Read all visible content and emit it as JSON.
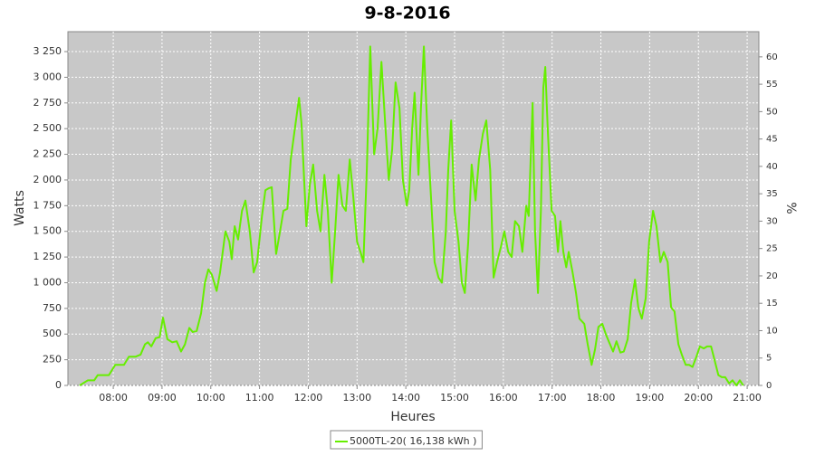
{
  "chart_data": {
    "type": "line",
    "title": "9-8-2016",
    "x_label": "Heures",
    "y_label": "Watts",
    "y2_label": "%",
    "x": [
      7.31,
      7.48,
      7.61,
      7.68,
      7.81,
      7.91,
      8.04,
      8.15,
      8.22,
      8.32,
      8.46,
      8.56,
      8.65,
      8.71,
      8.78,
      8.87,
      8.95,
      9.02,
      9.11,
      9.21,
      9.3,
      9.39,
      9.47,
      9.56,
      9.63,
      9.71,
      9.8,
      9.88,
      9.95,
      10.02,
      10.12,
      10.19,
      10.3,
      10.38,
      10.43,
      10.49,
      10.56,
      10.64,
      10.71,
      10.8,
      10.88,
      10.95,
      11.05,
      11.12,
      11.19,
      11.25,
      11.34,
      11.42,
      11.49,
      11.57,
      11.64,
      11.71,
      11.81,
      11.86,
      11.96,
      12.03,
      12.1,
      12.18,
      12.25,
      12.33,
      12.4,
      12.48,
      12.55,
      12.62,
      12.7,
      12.77,
      12.85,
      12.92,
      13.0,
      13.07,
      13.13,
      13.2,
      13.27,
      13.35,
      13.42,
      13.5,
      13.57,
      13.65,
      13.72,
      13.79,
      13.87,
      13.94,
      14.02,
      14.07,
      14.13,
      14.18,
      14.26,
      14.31,
      14.37,
      14.44,
      14.52,
      14.59,
      14.67,
      14.74,
      14.82,
      14.87,
      14.93,
      15.0,
      15.08,
      15.15,
      15.21,
      15.28,
      15.35,
      15.43,
      15.5,
      15.58,
      15.65,
      15.73,
      15.8,
      15.87,
      15.95,
      16.02,
      16.1,
      16.17,
      16.24,
      16.32,
      16.39,
      16.47,
      16.52,
      16.6,
      16.65,
      16.71,
      16.77,
      16.82,
      16.86,
      16.91,
      16.99,
      17.06,
      17.12,
      17.17,
      17.23,
      17.29,
      17.34,
      17.42,
      17.49,
      17.56,
      17.66,
      17.73,
      17.81,
      17.88,
      17.95,
      18.03,
      18.1,
      18.17,
      18.25,
      18.32,
      18.4,
      18.47,
      18.55,
      18.62,
      18.7,
      18.77,
      18.84,
      18.92,
      18.99,
      19.07,
      19.14,
      19.22,
      19.29,
      19.37,
      19.44,
      19.51,
      19.59,
      19.66,
      19.74,
      19.81,
      19.88,
      19.96,
      20.03,
      20.11,
      20.18,
      20.26,
      20.33,
      20.41,
      20.48,
      20.55,
      20.63,
      20.7,
      20.78,
      20.85,
      20.92
    ],
    "series": [
      {
        "name": "5000TL-20( 16,138 kWh )",
        "color": "#66ee00",
        "values": [
          0,
          50,
          50,
          100,
          100,
          100,
          200,
          200,
          200,
          280,
          280,
          300,
          400,
          420,
          380,
          460,
          470,
          660,
          450,
          420,
          430,
          330,
          400,
          560,
          520,
          530,
          700,
          1000,
          1130,
          1080,
          920,
          1100,
          1500,
          1400,
          1230,
          1550,
          1420,
          1700,
          1800,
          1500,
          1100,
          1200,
          1650,
          1900,
          1920,
          1930,
          1280,
          1500,
          1700,
          1720,
          2200,
          2450,
          2800,
          2550,
          1550,
          1950,
          2150,
          1700,
          1500,
          2050,
          1700,
          1000,
          1500,
          2050,
          1750,
          1700,
          2200,
          1850,
          1400,
          1300,
          1200,
          2100,
          3300,
          2250,
          2500,
          3150,
          2600,
          2000,
          2300,
          2950,
          2700,
          2000,
          1750,
          1900,
          2500,
          2850,
          2050,
          2700,
          3300,
          2500,
          1800,
          1200,
          1050,
          1000,
          1500,
          2100,
          2580,
          1700,
          1400,
          1000,
          900,
          1400,
          2150,
          1800,
          2200,
          2450,
          2580,
          2100,
          1050,
          1200,
          1350,
          1500,
          1300,
          1250,
          1600,
          1550,
          1300,
          1750,
          1650,
          2750,
          1500,
          900,
          1700,
          2900,
          3100,
          2500,
          1700,
          1650,
          1300,
          1600,
          1300,
          1150,
          1300,
          1100,
          900,
          650,
          600,
          400,
          200,
          350,
          570,
          600,
          500,
          420,
          330,
          430,
          320,
          330,
          450,
          800,
          1030,
          750,
          650,
          850,
          1400,
          1700,
          1550,
          1200,
          1300,
          1200,
          760,
          720,
          400,
          300,
          200,
          200,
          180,
          280,
          380,
          360,
          380,
          380,
          250,
          100,
          80,
          80,
          20,
          50,
          0,
          50,
          0
        ]
      }
    ],
    "xlim": [
      7.07,
      21.24
    ],
    "xticks": [
      {
        "value": 8,
        "label": "08:00"
      },
      {
        "value": 9,
        "label": "09:00"
      },
      {
        "value": 10,
        "label": "10:00"
      },
      {
        "value": 11,
        "label": "11:00"
      },
      {
        "value": 12,
        "label": "12:00"
      },
      {
        "value": 13,
        "label": "13:00"
      },
      {
        "value": 14,
        "label": "14:00"
      },
      {
        "value": 15,
        "label": "15:00"
      },
      {
        "value": 16,
        "label": "16:00"
      },
      {
        "value": 17,
        "label": "17:00"
      },
      {
        "value": 18,
        "label": "18:00"
      },
      {
        "value": 19,
        "label": "19:00"
      },
      {
        "value": 20,
        "label": "20:00"
      },
      {
        "value": 21,
        "label": "21:00"
      }
    ],
    "ylim": [
      0,
      3444
    ],
    "yticks": [
      0,
      250,
      500,
      750,
      {
        "value": 1000,
        "label": "1 000"
      },
      {
        "value": 1250,
        "label": "1 250"
      },
      {
        "value": 1500,
        "label": "1 500"
      },
      {
        "value": 1750,
        "label": "1 750"
      },
      {
        "value": 2000,
        "label": "2 000"
      },
      {
        "value": 2250,
        "label": "2 250"
      },
      {
        "value": 2500,
        "label": "2 500"
      },
      {
        "value": 2750,
        "label": "2 750"
      },
      {
        "value": 3000,
        "label": "3 000"
      },
      {
        "value": 3250,
        "label": "3 250"
      }
    ],
    "y2lim": [
      0,
      64.6
    ],
    "y2ticks": [
      0,
      5,
      10,
      15,
      20,
      25,
      30,
      35,
      40,
      45,
      50,
      55,
      60
    ],
    "grid": true,
    "legend": "bottom"
  }
}
